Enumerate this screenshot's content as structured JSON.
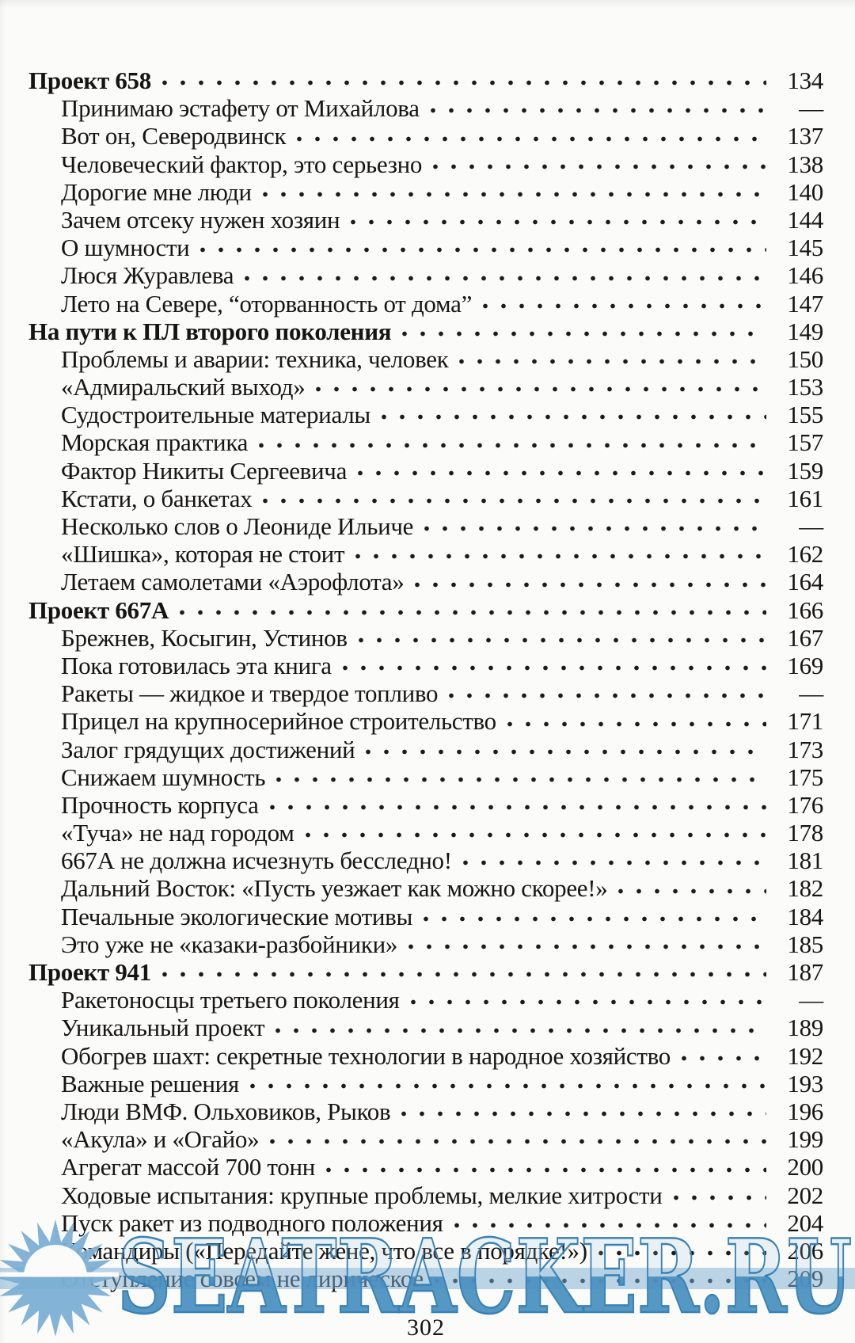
{
  "toc": {
    "sections": [
      {
        "title": "Проект 658",
        "page": "134",
        "entries": [
          {
            "title": "Принимаю эстафету от Михайлова",
            "page": "—"
          },
          {
            "title": "Вот он, Северодвинск",
            "page": "137"
          },
          {
            "title": "Человеческий фактор, это серьезно",
            "page": "138"
          },
          {
            "title": "Дорогие мне люди",
            "page": "140"
          },
          {
            "title": "Зачем отсеку нужен хозяин",
            "page": "144"
          },
          {
            "title": "О шумности",
            "page": "145"
          },
          {
            "title": "Люся Журавлева",
            "page": "146"
          },
          {
            "title": "Лето на Севере, “оторванность от дома”",
            "page": "147"
          }
        ]
      },
      {
        "title": "На пути к ПЛ второго поколения",
        "page": "149",
        "entries": [
          {
            "title": "Проблемы и аварии: техника, человек",
            "page": "150"
          },
          {
            "title": "«Адмиральский выход»",
            "page": "153"
          },
          {
            "title": "Судостроительные материалы",
            "page": "155"
          },
          {
            "title": "Морская практика",
            "page": "157"
          },
          {
            "title": "Фактор Никиты Сергеевича",
            "page": "159"
          },
          {
            "title": "Кстати, о банкетах",
            "page": "161"
          },
          {
            "title": "Несколько слов о Леониде Ильиче",
            "page": "—"
          },
          {
            "title": "«Шишка», которая не стоит",
            "page": "162"
          },
          {
            "title": "Летаем самолетами «Аэрофлота»",
            "page": "164"
          }
        ]
      },
      {
        "title": "Проект 667А",
        "page": "166",
        "entries": [
          {
            "title": "Брежнев, Косыгин, Устинов",
            "page": "167"
          },
          {
            "title": "Пока готовилась эта книга",
            "page": "169"
          },
          {
            "title": "Ракеты — жидкое и твердое топливо",
            "page": "—"
          },
          {
            "title": "Прицел на крупносерийное строительство",
            "page": "171"
          },
          {
            "title": "Залог грядущих достижений",
            "page": "173"
          },
          {
            "title": "Снижаем шумность",
            "page": "175"
          },
          {
            "title": "Прочность корпуса",
            "page": "176"
          },
          {
            "title": "«Туча» не над городом",
            "page": "178"
          },
          {
            "title": "667А не должна исчезнуть бесследно!",
            "page": "181"
          },
          {
            "title": "Дальний Восток: «Пусть уезжает как можно скорее!»",
            "page": "182"
          },
          {
            "title": "Печальные экологические мотивы",
            "page": "184"
          },
          {
            "title": "Это уже не «казаки-разбойники»",
            "page": "185"
          }
        ]
      },
      {
        "title": "Проект 941",
        "page": "187",
        "entries": [
          {
            "title": "Ракетоносцы третьего поколения",
            "page": "—"
          },
          {
            "title": "Уникальный проект",
            "page": "189"
          },
          {
            "title": "Обогрев шахт: секретные технологии в народное хозяйство",
            "page": "192"
          },
          {
            "title": "Важные решения",
            "page": "193"
          },
          {
            "title": "Люди ВМФ. Ольховиков, Рыков",
            "page": "196"
          },
          {
            "title": "«Акула» и «Огайо»",
            "page": "199"
          },
          {
            "title": "Агрегат массой 700 тонн",
            "page": "200"
          },
          {
            "title": "Ходовые испытания: крупные проблемы, мелкие хитрости",
            "page": "202"
          },
          {
            "title": "Пуск ракет из подводного положения",
            "page": "204"
          },
          {
            "title": "Командиры («Передайте жене, что все в порядке!»)",
            "page": "206"
          },
          {
            "title": "Отступление совсем не лирическое",
            "page": "209"
          }
        ]
      }
    ]
  },
  "footer": {
    "page_number": "302"
  },
  "watermark": {
    "text": "SEATRACKER.RU",
    "icon": "sunburst-sun-icon",
    "color_solid": "#4a90c0",
    "color_outline": "#3a82b5",
    "color_band": "#7aadd2"
  }
}
